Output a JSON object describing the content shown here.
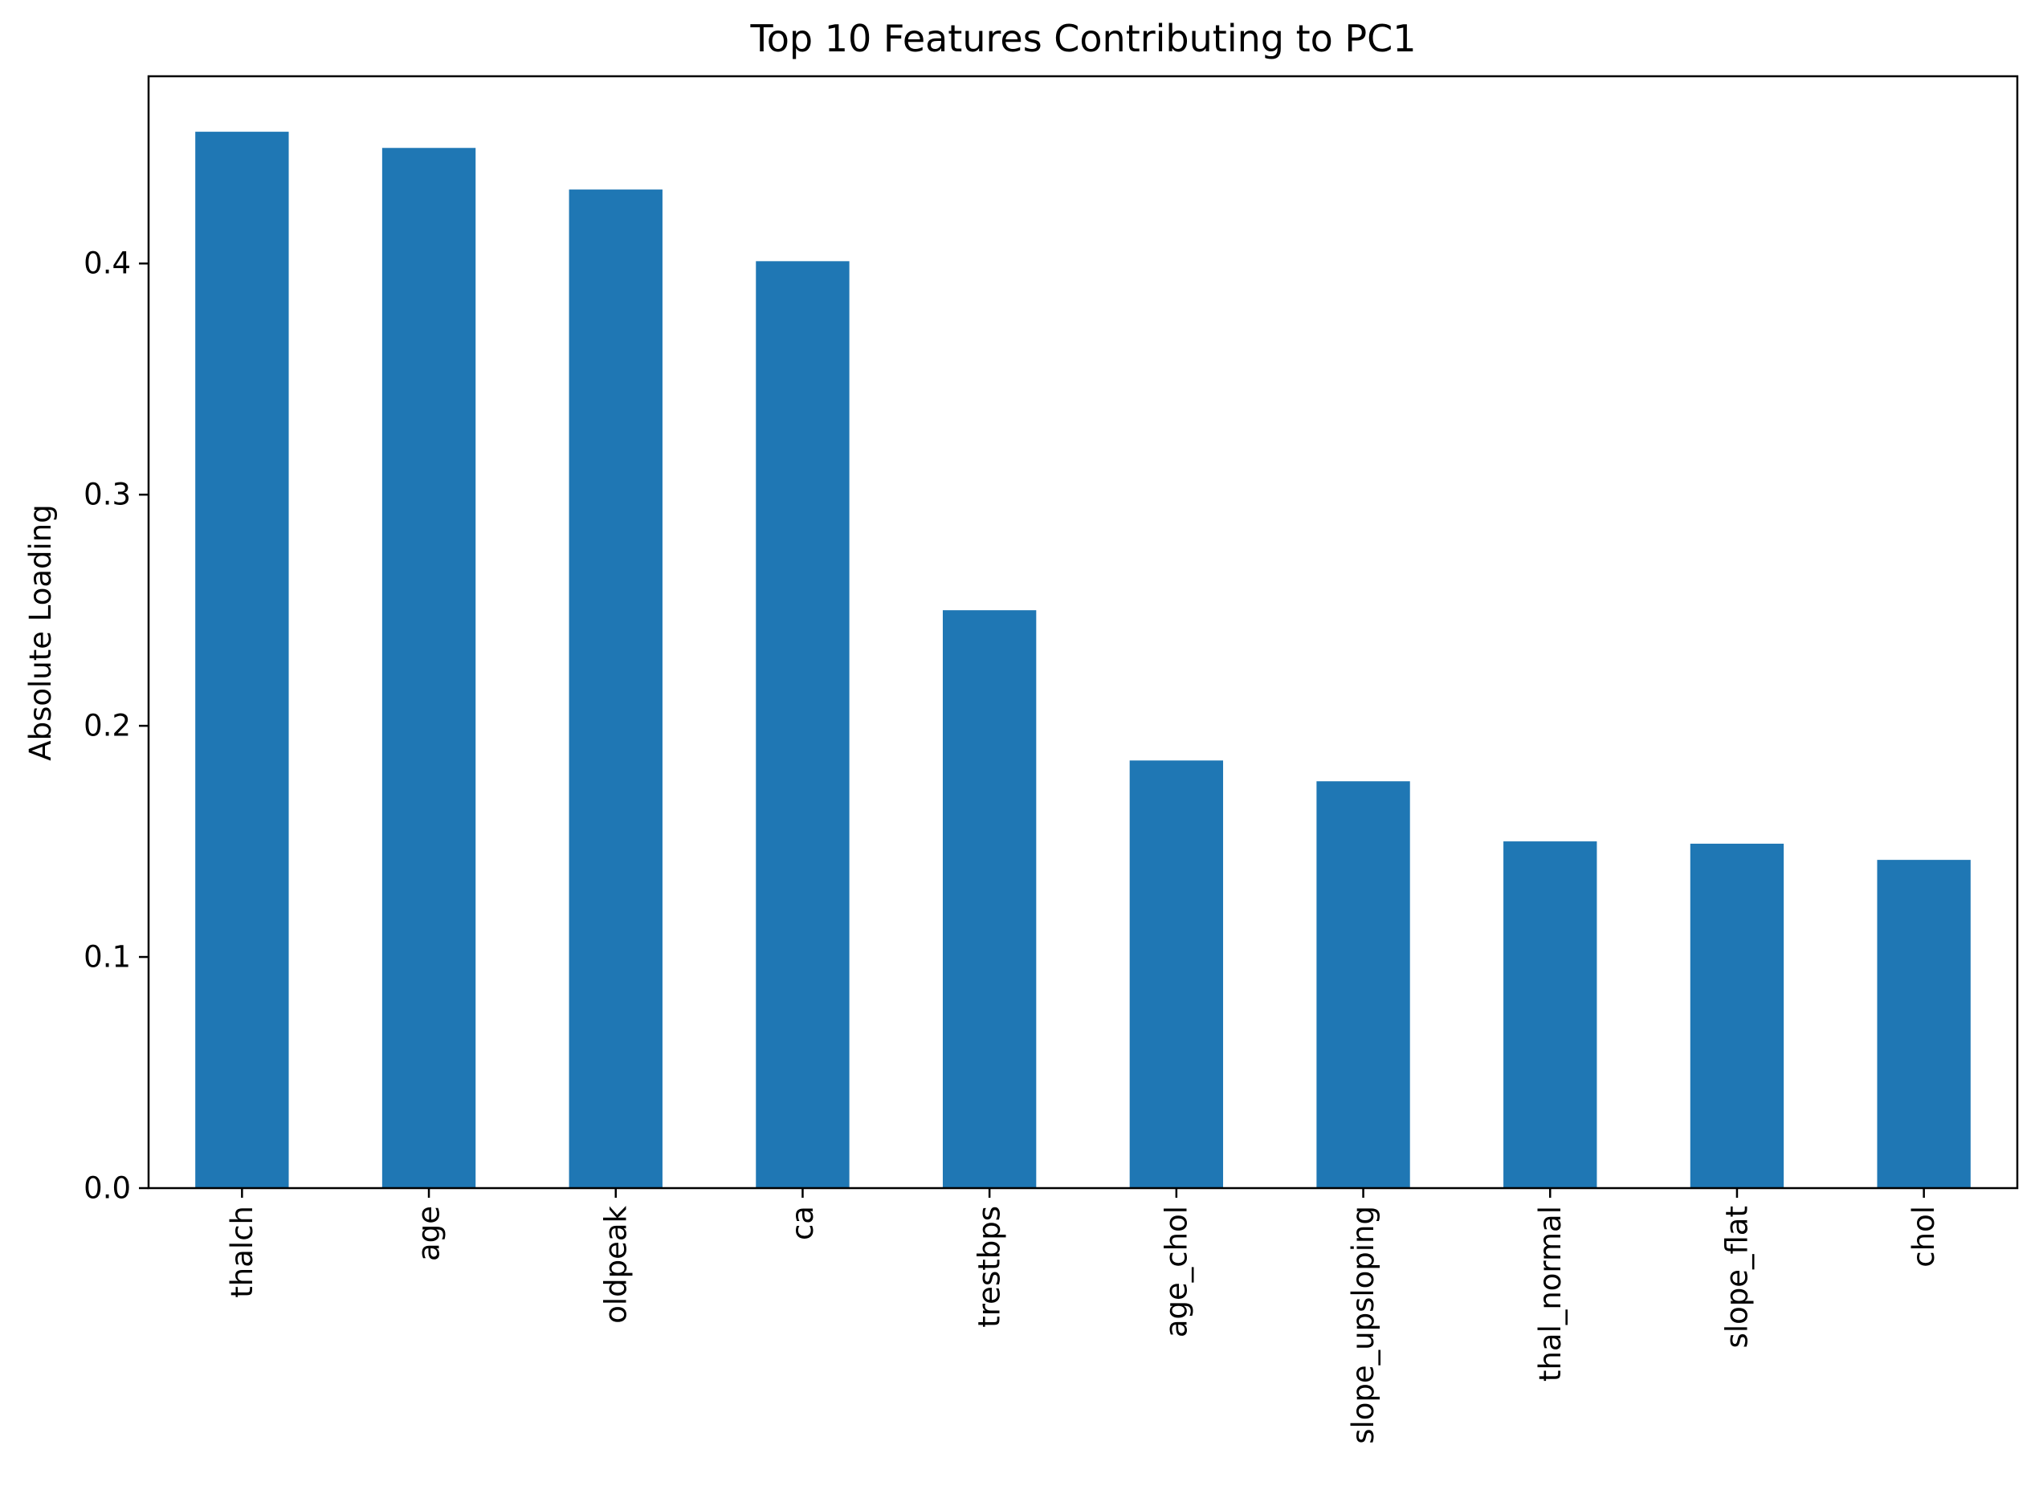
{
  "chart_data": {
    "type": "bar",
    "title": "Top 10 Features Contributing to PC1",
    "xlabel": "",
    "ylabel": "Absolute Loading",
    "categories": [
      "thalch",
      "age",
      "oldpeak",
      "ca",
      "trestbps",
      "age_chol",
      "slope_upsloping",
      "thal_normal",
      "slope_flat",
      "chol"
    ],
    "values": [
      0.457,
      0.45,
      0.432,
      0.401,
      0.25,
      0.185,
      0.176,
      0.15,
      0.149,
      0.142
    ],
    "ylim": [
      0,
      0.481
    ],
    "yticks": [
      0.0,
      0.1,
      0.2,
      0.3,
      0.4
    ],
    "ytick_labels": [
      "0.0",
      "0.1",
      "0.2",
      "0.3",
      "0.4"
    ],
    "bar_color": "#1f77b4",
    "grid": false,
    "legend": "none"
  }
}
